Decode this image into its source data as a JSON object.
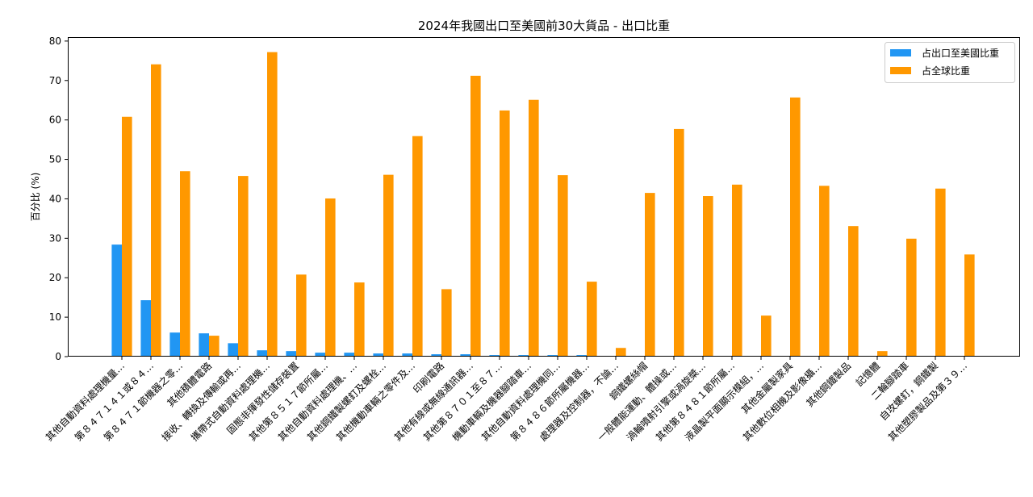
{
  "chart_data": {
    "type": "bar",
    "title": "2024年我國出口至美國前30大貨品 - 出口比重",
    "xlabel": "",
    "ylabel": "百分比 (%)",
    "ylim": [
      0,
      81
    ],
    "yticks": [
      0,
      10,
      20,
      30,
      40,
      50,
      60,
      70,
      80
    ],
    "legend_position": "top-right",
    "grid": false,
    "categories": [
      "其他自動資料處理機量…",
      "第８４７１４１或８４…",
      "第８４７１節機器之零…",
      "其他積體電路",
      "接收、轉換及傳輸或再…",
      "攜帶式自動資料處理機…",
      "固態非揮發性儲存裝置",
      "其他第８５１７節所屬…",
      "其他自動資料處理機、…",
      "其他鋼鐵製螺釘及螺栓…",
      "其他機動車輛之零件及…",
      "印刷電路",
      "其他有線或無線通訊器…",
      "其他第８７０１至８７…",
      "機動車輛及機器腳踏車…",
      "其他自動資料處理機同…",
      "第８４８６節所屬機器…",
      "處理器及控制器，不論…",
      "鋼鐵螺絲帽",
      "一般體能運動、體操或…",
      "渦輪噴射引擎或渦旋槳…",
      "其他第８４８１節所屬…",
      "液晶製平面顯示模組，…",
      "其他金屬製家具",
      "其他數位相機及影像攝…",
      "其他鋼鐵製品",
      "記憶體",
      "二輪腳踏車",
      "自攻螺釘，鋼鐵製",
      "其他塑膠製品及第３９…"
    ],
    "series": [
      {
        "name": "占出口至美國比重",
        "color": "#2196f3",
        "values": [
          28.4,
          14.3,
          6.1,
          5.9,
          3.4,
          1.6,
          1.4,
          1.0,
          1.0,
          0.8,
          0.8,
          0.6,
          0.6,
          0.4,
          0.4,
          0.4,
          0.4,
          0.2,
          0.2,
          0.2,
          0.2,
          0.2,
          0.2,
          0.2,
          0.2,
          0.2,
          0.2,
          0.2,
          0.2,
          0.2
        ]
      },
      {
        "name": "占全球比重",
        "color": "#ff9800",
        "values": [
          60.8,
          74.1,
          47.0,
          5.3,
          45.8,
          77.2,
          20.8,
          40.1,
          18.8,
          46.1,
          55.9,
          17.1,
          71.2,
          62.4,
          65.1,
          46.0,
          19.0,
          2.2,
          41.5,
          57.7,
          40.7,
          43.6,
          10.4,
          65.7,
          43.3,
          33.1,
          1.4,
          29.9,
          42.6,
          25.9
        ]
      }
    ]
  }
}
